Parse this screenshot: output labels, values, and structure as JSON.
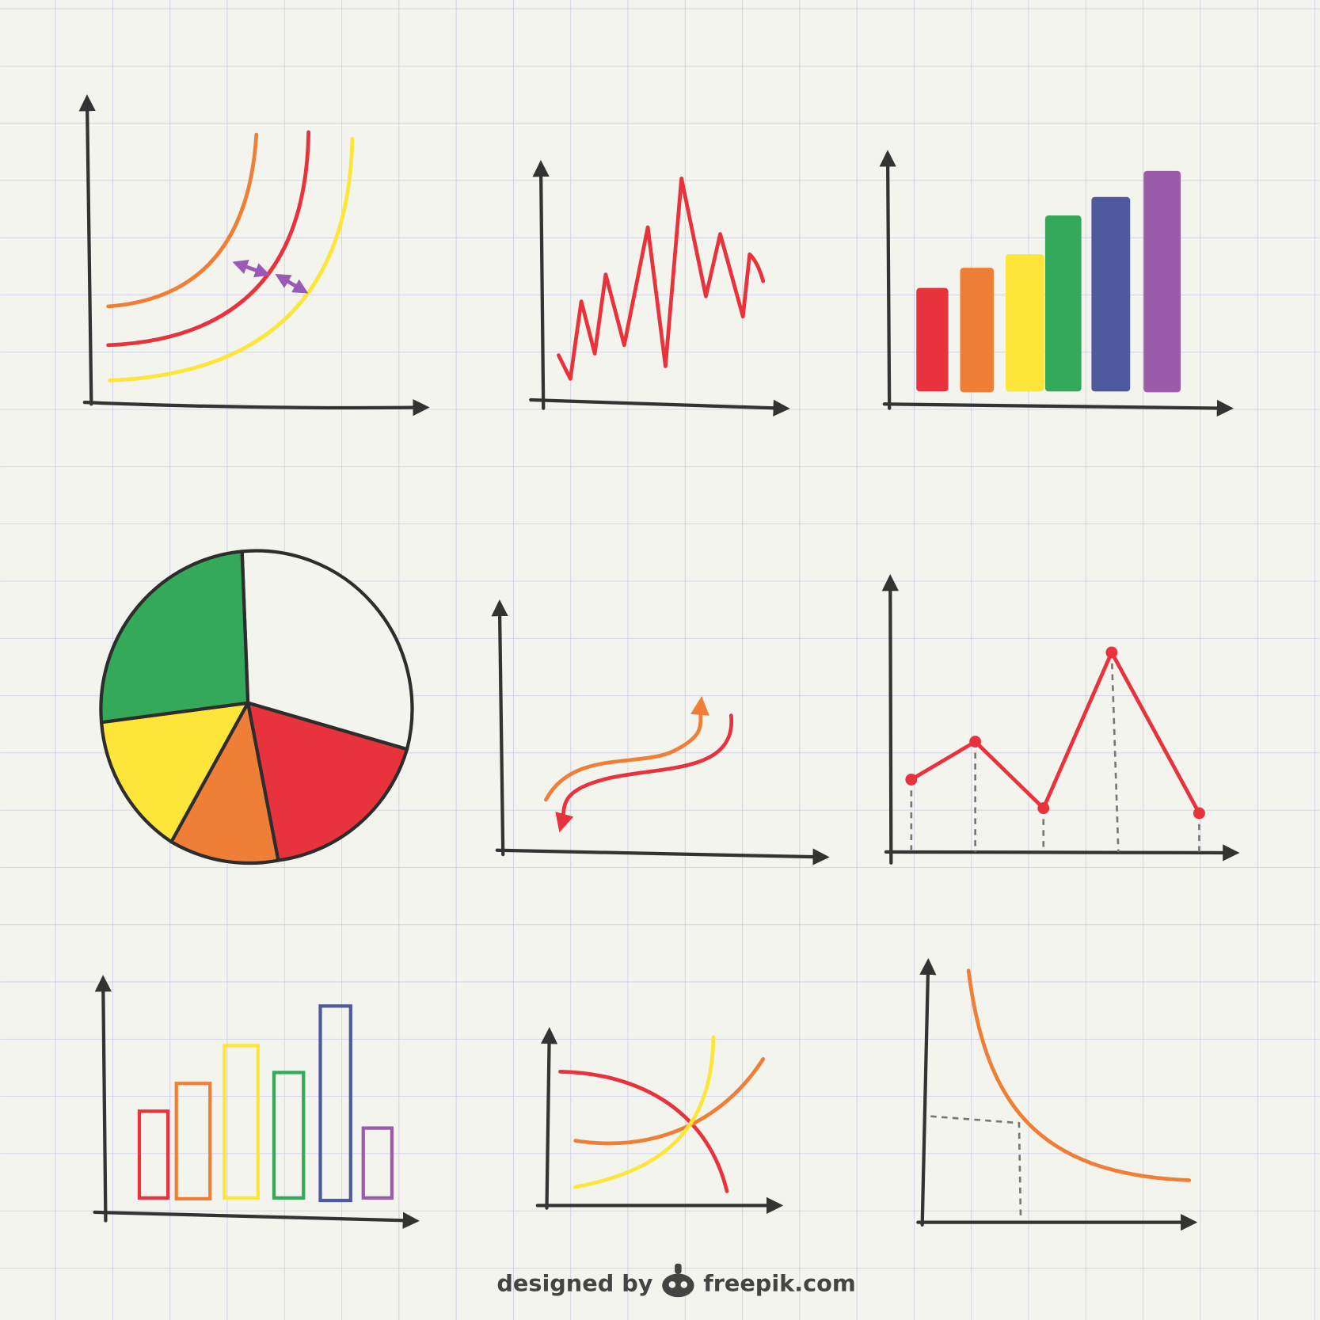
{
  "credit": {
    "prefix": "designed by",
    "brand": "freepik.com"
  }
}
